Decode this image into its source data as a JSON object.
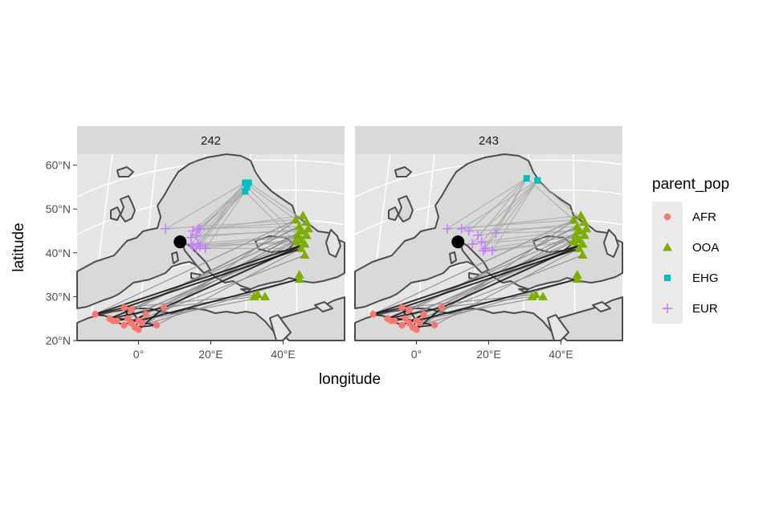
{
  "chart_data": {
    "type": "scatter",
    "xlabel": "longitude",
    "ylabel": "latitude",
    "x_tick_labels": [
      "0°",
      "20°E",
      "40°E"
    ],
    "y_tick_labels": [
      "20°N",
      "30°N",
      "40°N",
      "50°N",
      "60°N"
    ],
    "x_ticks": [
      0,
      20,
      40
    ],
    "y_ticks": [
      20,
      30,
      40,
      50,
      60
    ],
    "xlim": [
      -17,
      57
    ],
    "ylim": [
      20,
      62.5
    ],
    "grid": true,
    "legend": {
      "title": "parent_pop",
      "position": "right",
      "entries": [
        {
          "name": "AFR",
          "shape": "circle",
          "color": "#F8766D"
        },
        {
          "name": "OOA",
          "shape": "triangle",
          "color": "#7CAE00"
        },
        {
          "name": "EHG",
          "shape": "square",
          "color": "#00BFC4"
        },
        {
          "name": "EUR",
          "shape": "plus",
          "color": "#C77CFF"
        }
      ]
    },
    "panels": [
      {
        "label": "242",
        "focal": {
          "x": 11.5,
          "y": 42.5
        },
        "points": {
          "AFR": [
            [
              -12,
              26
            ],
            [
              -8,
              25
            ],
            [
              -6,
              24.5
            ],
            [
              -4,
              27.5
            ],
            [
              -2,
              27
            ],
            [
              -3,
              25
            ],
            [
              -2,
              24
            ],
            [
              0,
              24.5
            ],
            [
              1,
              24
            ],
            [
              2,
              26
            ],
            [
              -1,
              23
            ],
            [
              0,
              22.5
            ],
            [
              -4,
              23.5
            ],
            [
              5,
              23.5
            ],
            [
              7,
              27.5
            ],
            [
              -7,
              24.5
            ]
          ],
          "OOA": [
            [
              43.5,
              47.5
            ],
            [
              45.5,
              48.5
            ],
            [
              44.5,
              46
            ],
            [
              46.5,
              47
            ],
            [
              45,
              45
            ],
            [
              47,
              45.5
            ],
            [
              44,
              44
            ],
            [
              46.5,
              44
            ],
            [
              45,
              43
            ],
            [
              43.5,
              42.5
            ],
            [
              46,
              42
            ],
            [
              45,
              41
            ],
            [
              46,
              39.5
            ],
            [
              44.5,
              35
            ],
            [
              44.5,
              34
            ],
            [
              33,
              30.5
            ],
            [
              32,
              30
            ],
            [
              35,
              30
            ]
          ],
          "EHG": [
            [
              29.5,
              56
            ],
            [
              30.5,
              56
            ],
            [
              30,
              55
            ],
            [
              29.5,
              54
            ]
          ],
          "EUR": [
            [
              7.5,
              45.5
            ],
            [
              15,
              45
            ],
            [
              16.5,
              45.5
            ],
            [
              17,
              45.5
            ],
            [
              16,
              44
            ],
            [
              14.5,
              43.5
            ],
            [
              14.5,
              42
            ],
            [
              15,
              41.5
            ],
            [
              16,
              41
            ],
            [
              17,
              41.5
            ],
            [
              16.5,
              42
            ],
            [
              18.5,
              41
            ]
          ]
        }
      },
      {
        "label": "243",
        "focal": {
          "x": 11.5,
          "y": 42.5
        },
        "points": {
          "AFR": [
            [
              -12,
              26
            ],
            [
              -8,
              25
            ],
            [
              -6,
              24.5
            ],
            [
              -4,
              27.5
            ],
            [
              -2,
              27
            ],
            [
              -3,
              25
            ],
            [
              -2,
              24
            ],
            [
              0,
              24.5
            ],
            [
              1,
              24
            ],
            [
              2,
              26
            ],
            [
              -1,
              23
            ],
            [
              0,
              22.5
            ],
            [
              -4,
              23.5
            ],
            [
              5,
              23.5
            ],
            [
              7,
              27.5
            ],
            [
              -7,
              24.5
            ]
          ],
          "OOA": [
            [
              43.5,
              47.5
            ],
            [
              45.5,
              48.5
            ],
            [
              44.5,
              46
            ],
            [
              46.5,
              47
            ],
            [
              45,
              45
            ],
            [
              47,
              45.5
            ],
            [
              44,
              44
            ],
            [
              46.5,
              44
            ],
            [
              45,
              43
            ],
            [
              43.5,
              42.5
            ],
            [
              46,
              42
            ],
            [
              45,
              41
            ],
            [
              46,
              39.5
            ],
            [
              44.5,
              35
            ],
            [
              44.5,
              34
            ],
            [
              33,
              30.5
            ],
            [
              32,
              30
            ],
            [
              35,
              30
            ]
          ],
          "EHG": [
            [
              30.5,
              57
            ],
            [
              33.5,
              56.5
            ]
          ],
          "EUR": [
            [
              8.5,
              45.5
            ],
            [
              12.5,
              45.5
            ],
            [
              14.5,
              45
            ],
            [
              17,
              44
            ],
            [
              22,
              44.5
            ],
            [
              18,
              42.5
            ],
            [
              15.5,
              42
            ],
            [
              19,
              41
            ],
            [
              18.5,
              40.5
            ],
            [
              21,
              40.5
            ]
          ]
        }
      }
    ]
  }
}
